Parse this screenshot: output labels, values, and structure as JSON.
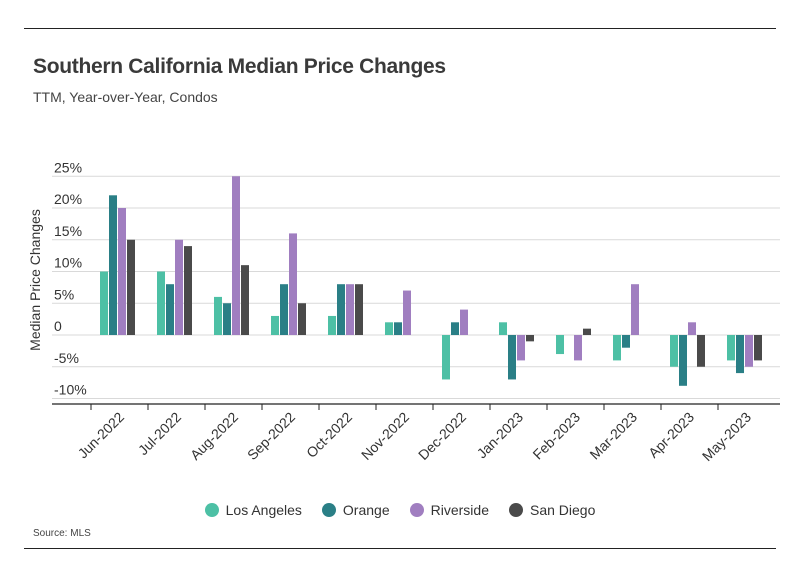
{
  "header": {
    "title": "Southern California Median Price Changes",
    "subtitle": "TTM, Year-over-Year, Condos"
  },
  "footer": {
    "source": "Source: MLS"
  },
  "chart_data": {
    "type": "bar",
    "title": "Southern California Median Price Changes",
    "subtitle": "TTM, Year-over-Year, Condos",
    "ylabel": "Median Price Changes",
    "xlabel": "",
    "ylim": [
      -12,
      25
    ],
    "yticks": [
      -10,
      -5,
      0,
      5,
      10,
      15,
      20,
      25
    ],
    "ytick_labels": [
      "-10%",
      "-5%",
      "0",
      "5%",
      "10%",
      "15%",
      "20%",
      "25%"
    ],
    "grid": true,
    "legend_position": "bottom",
    "categories": [
      "Jun-2022",
      "Jul-2022",
      "Aug-2022",
      "Sep-2022",
      "Oct-2022",
      "Nov-2022",
      "Dec-2022",
      "Jan-2023",
      "Feb-2023",
      "Mar-2023",
      "Apr-2023",
      "May-2023"
    ],
    "series": [
      {
        "name": "Los Angeles",
        "color": "#4dc0a5",
        "values": [
          10,
          10,
          6,
          3,
          3,
          2,
          -7,
          2,
          -3,
          -4,
          -5,
          -4
        ]
      },
      {
        "name": "Orange",
        "color": "#2a7f86",
        "values": [
          22,
          8,
          5,
          8,
          8,
          2,
          2,
          -7,
          0,
          -2,
          -8,
          -6
        ]
      },
      {
        "name": "Riverside",
        "color": "#a07ec0",
        "values": [
          20,
          15,
          25,
          16,
          8,
          7,
          4,
          -4,
          -4,
          8,
          2,
          -5
        ]
      },
      {
        "name": "San Diego",
        "color": "#4a4a4a",
        "values": [
          15,
          14,
          11,
          5,
          8,
          0,
          0,
          -1,
          1,
          0,
          -5,
          -4
        ]
      }
    ]
  }
}
